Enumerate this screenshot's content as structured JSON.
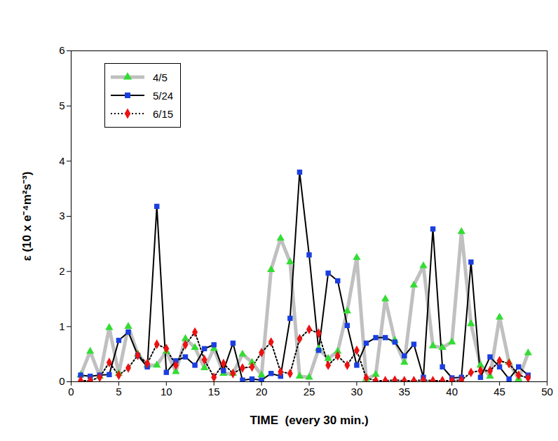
{
  "chart_data": {
    "type": "line",
    "x_label": "TIME  (every 30 min.)",
    "y_label": "ε (10 x e⁻⁴m²s⁻³)",
    "x": [
      1,
      2,
      3,
      4,
      5,
      6,
      7,
      8,
      9,
      10,
      11,
      12,
      13,
      14,
      15,
      16,
      17,
      18,
      19,
      20,
      21,
      22,
      23,
      24,
      25,
      26,
      27,
      28,
      29,
      30,
      31,
      32,
      33,
      34,
      35,
      36,
      37,
      38,
      39,
      40,
      41,
      42,
      43,
      44,
      45,
      46,
      47,
      48
    ],
    "series": [
      {
        "name": "4/5",
        "color": "#33dd33",
        "marker": "triangle",
        "line_style": "solid",
        "values": [
          0.12,
          0.55,
          0.1,
          0.98,
          0.15,
          1.0,
          0.5,
          0.3,
          0.3,
          0.55,
          0.18,
          0.78,
          0.62,
          0.25,
          0.6,
          0.15,
          0.15,
          0.5,
          0.35,
          0.12,
          2.03,
          2.6,
          2.17,
          0.1,
          0.08,
          0.6,
          0.42,
          0.55,
          1.28,
          2.25,
          0.05,
          0.13,
          1.5,
          0.75,
          0.35,
          1.75,
          2.1,
          0.65,
          0.62,
          0.72,
          2.72,
          1.05,
          0.3,
          0.1,
          1.17,
          0.35,
          0.05,
          0.52
        ]
      },
      {
        "name": "5/24",
        "color": "#1a3fe0",
        "marker": "square",
        "line_style": "solid",
        "values": [
          0.12,
          0.1,
          0.12,
          0.13,
          0.75,
          0.9,
          0.48,
          0.27,
          3.18,
          0.17,
          0.38,
          0.45,
          0.3,
          0.6,
          0.67,
          0.2,
          0.7,
          0.03,
          0.05,
          0.03,
          0.15,
          0.1,
          1.15,
          3.8,
          2.3,
          0.57,
          1.97,
          1.83,
          1.02,
          0.3,
          0.7,
          0.8,
          0.8,
          0.72,
          0.47,
          0.68,
          0.08,
          2.77,
          0.27,
          0.07,
          0.08,
          2.17,
          0.08,
          0.45,
          0.27,
          0.05,
          0.27,
          0.12
        ]
      },
      {
        "name": "6/15",
        "color": "#ee1111",
        "marker": "diamond",
        "line_style": "dotted",
        "values": [
          0.02,
          0.02,
          0.08,
          0.35,
          0.12,
          0.25,
          0.48,
          0.33,
          0.68,
          0.6,
          0.3,
          0.67,
          0.9,
          0.4,
          0.08,
          0.33,
          0.15,
          0.25,
          0.27,
          0.53,
          0.72,
          0.18,
          0.15,
          0.78,
          0.95,
          0.88,
          0.3,
          0.47,
          0.3,
          0.57,
          0.07,
          0.02,
          0.02,
          0.03,
          0.02,
          0.02,
          0.03,
          0.02,
          0.02,
          0.02,
          0.03,
          0.17,
          0.2,
          0.2,
          0.38,
          0.33,
          0.12,
          0.07
        ]
      }
    ],
    "xlim": [
      0,
      50
    ],
    "xticks": [
      0,
      5,
      10,
      15,
      20,
      25,
      30,
      35,
      40,
      45,
      50
    ],
    "ylim": [
      0,
      6
    ],
    "yticks": [
      0,
      1,
      2,
      3,
      4,
      5,
      6
    ],
    "grid": false,
    "legend": "top-left"
  }
}
